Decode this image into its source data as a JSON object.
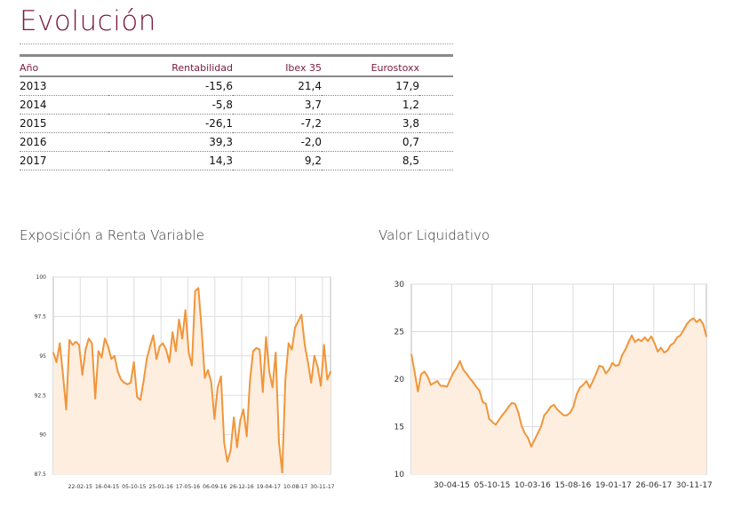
{
  "header": {
    "title": "Evolución"
  },
  "table": {
    "columns": [
      "Año",
      "Rentabilidad",
      "Ibex 35",
      "Eurostoxx"
    ],
    "rows": [
      [
        "2013",
        "-15,6",
        "21,4",
        "17,9"
      ],
      [
        "2014",
        "-5,8",
        "3,7",
        "1,2"
      ],
      [
        "2015",
        "-26,1",
        "-7,2",
        "3,8"
      ],
      [
        "2016",
        "39,3",
        "-2,0",
        "0,7"
      ],
      [
        "2017",
        "14,3",
        "9,2",
        "8,5"
      ]
    ]
  },
  "colors": {
    "accent": "#7a1a3b",
    "line": "#f0963a",
    "fill": "#fdeee0"
  },
  "chart_data": [
    {
      "type": "area",
      "title": "Exposición a Renta Variable",
      "xlabel": "",
      "ylabel": "",
      "ylim": [
        87.5,
        100
      ],
      "yticks": [
        "87.5",
        "90",
        "92.5",
        "95",
        "97.5",
        "100"
      ],
      "xticks": [
        "22-02-15",
        "16-04-15",
        "05-10-15",
        "25-01-16",
        "17-05-16",
        "06-09-16",
        "26-12-16",
        "19-04-17",
        "10-08-17",
        "30-11-17"
      ],
      "grid": true,
      "values": [
        95.2,
        94.6,
        95.8,
        93.8,
        91.6,
        96.0,
        95.7,
        95.9,
        95.7,
        93.8,
        95.4,
        96.1,
        95.8,
        92.3,
        95.3,
        94.9,
        96.1,
        95.6,
        94.8,
        95.0,
        94.0,
        93.5,
        93.3,
        93.2,
        93.3,
        94.6,
        92.4,
        92.2,
        93.4,
        94.8,
        95.6,
        96.3,
        94.8,
        95.6,
        95.8,
        95.4,
        94.6,
        96.5,
        95.3,
        97.3,
        96.1,
        97.9,
        95.2,
        94.4,
        99.1,
        99.3,
        96.7,
        93.6,
        94.1,
        93.3,
        91.0,
        93.0,
        93.7,
        89.5,
        88.3,
        89.0,
        91.1,
        89.2,
        90.9,
        91.6,
        89.9,
        93.4,
        95.3,
        95.5,
        95.4,
        92.7,
        96.2,
        94.0,
        93.0,
        95.2,
        89.5,
        87.6,
        93.5,
        95.8,
        95.4,
        96.8,
        97.2,
        97.6,
        95.7,
        94.6,
        93.3,
        95.0,
        94.3,
        93.1,
        95.7,
        93.5,
        94.0
      ]
    },
    {
      "type": "area",
      "title": "Valor Liquidativo",
      "xlabel": "",
      "ylabel": "",
      "ylim": [
        10,
        30
      ],
      "yticks": [
        "10",
        "15",
        "20",
        "25",
        "30"
      ],
      "xticks": [
        "30-04-15",
        "05-10-15",
        "10-03-16",
        "15-08-16",
        "19-01-17",
        "26-06-17",
        "30-11-17"
      ],
      "grid": true,
      "values": [
        22.6,
        20.8,
        18.7,
        20.5,
        20.8,
        20.3,
        19.4,
        19.6,
        19.8,
        19.3,
        19.3,
        19.2,
        20.0,
        20.7,
        21.2,
        21.9,
        21.0,
        20.6,
        20.1,
        19.7,
        19.2,
        18.8,
        17.6,
        17.4,
        15.8,
        15.5,
        15.2,
        15.7,
        16.2,
        16.6,
        17.1,
        17.5,
        17.4,
        16.5,
        15.1,
        14.3,
        13.8,
        12.9,
        13.6,
        14.3,
        15.0,
        16.2,
        16.6,
        17.1,
        17.3,
        16.8,
        16.5,
        16.2,
        16.2,
        16.5,
        17.1,
        18.4,
        19.1,
        19.4,
        19.8,
        19.1,
        19.8,
        20.6,
        21.4,
        21.3,
        20.6,
        21.0,
        21.7,
        21.4,
        21.5,
        22.5,
        23.1,
        23.9,
        24.6,
        23.9,
        24.2,
        24.0,
        24.4,
        24.0,
        24.5,
        23.8,
        22.9,
        23.3,
        22.8,
        23.0,
        23.6,
        23.8,
        24.4,
        24.6,
        25.2,
        25.8,
        26.2,
        26.4,
        26.0,
        26.3,
        25.8,
        24.5
      ]
    }
  ]
}
